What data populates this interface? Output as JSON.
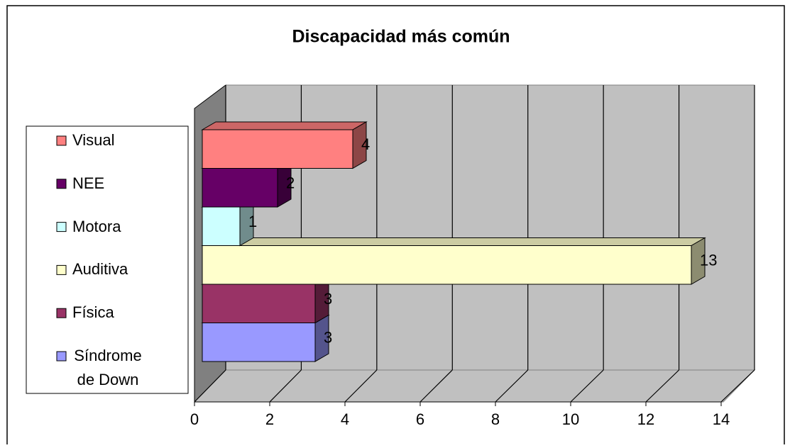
{
  "chart_data": {
    "type": "bar",
    "orientation": "horizontal",
    "three_d": true,
    "title": "Discapacidad más común",
    "categories": [
      "Visual",
      "NEE",
      "Motora",
      "Auditiva",
      "Física",
      "Síndrome de Down"
    ],
    "values": [
      4,
      2,
      1,
      13,
      3,
      3
    ],
    "colors": [
      "#ff8080",
      "#660066",
      "#ccffff",
      "#ffffcc",
      "#993366",
      "#9999ff"
    ],
    "xlim": [
      0,
      14
    ],
    "xticks": [
      0,
      2,
      4,
      6,
      8,
      10,
      12,
      14
    ],
    "grid": true,
    "legend": "left"
  }
}
